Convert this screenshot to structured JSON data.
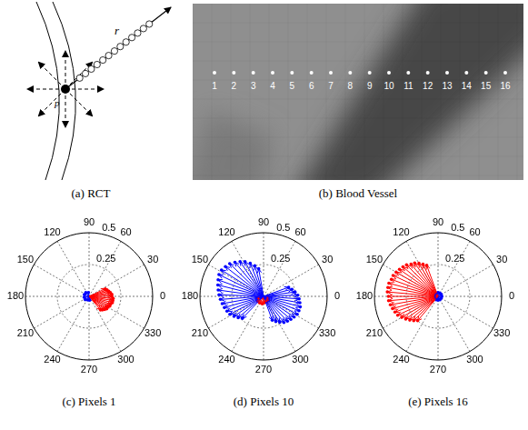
{
  "figure": {
    "panel_a": {
      "caption": "(a) RCT",
      "labels": [
        "r",
        "p"
      ]
    },
    "panel_b": {
      "caption": "(b) Blood Vessel",
      "pixel_labels": [
        1,
        2,
        3,
        4,
        5,
        6,
        7,
        8,
        9,
        10,
        11,
        12,
        13,
        14,
        15,
        16
      ]
    }
  },
  "chart_data": [
    {
      "type": "polar",
      "title": "(c) Pixels 1",
      "theta_ticks": [
        0,
        30,
        60,
        90,
        120,
        150,
        180,
        210,
        240,
        270,
        300,
        330
      ],
      "rlim": [
        0,
        0.5
      ],
      "rticks": [
        0.25,
        0.5
      ],
      "grid": true,
      "series": [
        {
          "color": "#ff0000",
          "marker": "dot",
          "angles": [
            310,
            315,
            320,
            325,
            330,
            335,
            340,
            345,
            350,
            355,
            0,
            5,
            10,
            15,
            20,
            25
          ],
          "values": [
            0.14,
            0.15,
            0.16,
            0.17,
            0.17,
            0.18,
            0.18,
            0.19,
            0.19,
            0.19,
            0.18,
            0.18,
            0.17,
            0.16,
            0.15,
            0.14
          ]
        },
        {
          "color": "#0000ff",
          "marker": "dot",
          "angles": [
            100,
            130,
            160,
            190,
            220,
            250,
            280
          ],
          "values": [
            0.03,
            0.04,
            0.04,
            0.04,
            0.04,
            0.03,
            0.03
          ]
        }
      ]
    },
    {
      "type": "polar",
      "title": "(d) Pixels 10",
      "theta_ticks": [
        0,
        30,
        60,
        90,
        120,
        150,
        180,
        210,
        240,
        270,
        300,
        330
      ],
      "rlim": [
        0,
        0.5
      ],
      "rticks": [
        0.25,
        0.5
      ],
      "grid": true,
      "series": [
        {
          "color": "#0000ff",
          "marker": "dot",
          "angles": [
            100,
            106,
            112,
            118,
            124,
            130,
            136,
            142,
            148,
            154,
            160,
            166,
            172,
            178,
            184,
            190,
            196,
            202,
            208,
            214,
            220,
            226,
            290,
            296,
            302,
            308,
            314,
            320,
            326,
            332,
            338,
            344,
            350,
            356,
            2,
            8,
            14,
            20
          ],
          "values": [
            0.22,
            0.25,
            0.28,
            0.31,
            0.33,
            0.35,
            0.37,
            0.38,
            0.39,
            0.39,
            0.38,
            0.37,
            0.36,
            0.35,
            0.34,
            0.33,
            0.32,
            0.31,
            0.3,
            0.28,
            0.26,
            0.24,
            0.2,
            0.22,
            0.24,
            0.26,
            0.27,
            0.28,
            0.29,
            0.3,
            0.3,
            0.3,
            0.29,
            0.28,
            0.27,
            0.25,
            0.23,
            0.21
          ]
        },
        {
          "color": "#ff0000",
          "marker": "dot",
          "angles": [
            200,
            220,
            240,
            260,
            280,
            300,
            320,
            340
          ],
          "values": [
            0.05,
            0.06,
            0.06,
            0.06,
            0.05,
            0.05,
            0.05,
            0.04
          ]
        }
      ]
    },
    {
      "type": "polar",
      "title": "(e) Pixels 16",
      "theta_ticks": [
        0,
        30,
        60,
        90,
        120,
        150,
        180,
        210,
        240,
        270,
        300,
        330
      ],
      "rlim": [
        0,
        0.5
      ],
      "rticks": [
        0.25,
        0.5
      ],
      "grid": true,
      "series": [
        {
          "color": "#ff0000",
          "marker": "dot",
          "angles": [
            110,
            115,
            120,
            125,
            130,
            135,
            140,
            145,
            150,
            155,
            160,
            165,
            170,
            175,
            180,
            185,
            190,
            195,
            200,
            205,
            210,
            215,
            220,
            225,
            230
          ],
          "values": [
            0.26,
            0.28,
            0.3,
            0.32,
            0.33,
            0.35,
            0.36,
            0.37,
            0.38,
            0.39,
            0.39,
            0.4,
            0.4,
            0.4,
            0.39,
            0.39,
            0.38,
            0.37,
            0.36,
            0.35,
            0.33,
            0.31,
            0.29,
            0.27,
            0.25
          ]
        },
        {
          "color": "#0000ff",
          "marker": "dot",
          "angles": [
            0,
            30,
            60,
            90,
            120,
            150,
            180,
            210,
            240,
            270,
            300,
            330
          ],
          "values": [
            0.03,
            0.03,
            0.03,
            0.03,
            0.03,
            0.03,
            0.03,
            0.03,
            0.03,
            0.03,
            0.03,
            0.03
          ]
        }
      ]
    }
  ]
}
